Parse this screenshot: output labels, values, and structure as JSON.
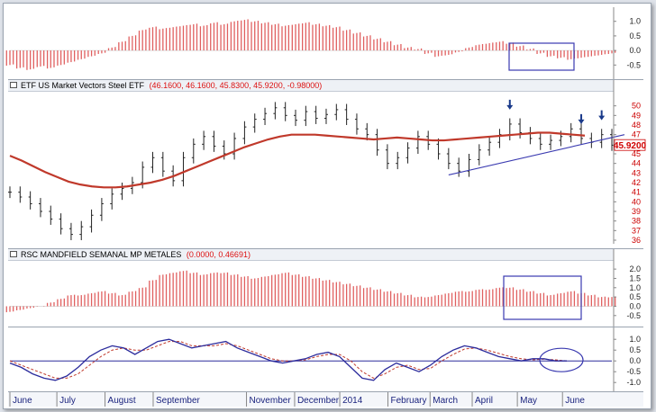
{
  "panels": {
    "etf": {
      "name": "ETF US Market Vectors Steel ETF",
      "values": "(46.1600, 46.1600, 45.8300, 45.9200, -0.98000)",
      "last_price": "45.9200"
    },
    "rsc": {
      "name": "RSC MANDFIELD SEMANAL MP METALES",
      "values": "(0.0000, 0.46691)"
    }
  },
  "colors": {
    "bar_positive": "#e06060",
    "bar_negative": "#e06060",
    "sma": "#c0392b",
    "price": "#222222",
    "trendline": "#3a3ab0",
    "box": "#3a3ab0",
    "osc": "#2b2b9c",
    "osc_signal": "#c0392b",
    "arrow": "#1a3a8a",
    "price_axis": "#d00000"
  },
  "x_axis": {
    "months": [
      "June",
      "July",
      "August",
      "September",
      "November",
      "December",
      "2014",
      "February",
      "March",
      "April",
      "May",
      "June"
    ]
  },
  "chart_data": [
    {
      "type": "bar",
      "panel": "top-histogram",
      "ylim": [
        -0.8,
        1.3
      ],
      "y_ticks": [
        "1.0",
        "0.5",
        "0.0",
        "-0.5"
      ],
      "grid": false,
      "series": [
        {
          "values": [
            -0.5,
            -0.6,
            -0.65,
            -0.55,
            -0.6,
            -0.5,
            -0.4,
            -0.3,
            -0.2,
            -0.1,
            0.1,
            0.3,
            0.5,
            0.7,
            0.8,
            0.75,
            0.8,
            0.85,
            0.9,
            0.85,
            0.95,
            0.9,
            1.0,
            1.05,
            1.0,
            0.95,
            0.9,
            0.85,
            0.9,
            0.95,
            0.9,
            0.85,
            0.8,
            0.7,
            0.6,
            0.5,
            0.4,
            0.3,
            0.2,
            0.1,
            0.05,
            -0.1,
            -0.2,
            -0.15,
            -0.05,
            0.1,
            0.2,
            0.25,
            0.3,
            0.25,
            0.15,
            0.05,
            -0.1,
            -0.2,
            -0.25,
            -0.3,
            -0.25,
            -0.2,
            -0.15,
            -0.1
          ]
        }
      ]
    },
    {
      "type": "line",
      "panel": "price",
      "ylim": [
        36,
        51
      ],
      "y_ticks": [
        "50",
        "49",
        "48",
        "47",
        "46",
        "45",
        "44",
        "43",
        "42",
        "41",
        "40",
        "39",
        "38",
        "37",
        "36"
      ],
      "series": [
        {
          "name": "ETF US Market Vectors Steel ETF",
          "values": [
            41.0,
            40.5,
            39.8,
            39.0,
            38.2,
            37.2,
            36.6,
            37.4,
            38.6,
            39.8,
            40.8,
            41.4,
            42.0,
            43.6,
            44.6,
            43.2,
            42.2,
            44.6,
            46.0,
            46.8,
            45.8,
            45.0,
            46.6,
            47.8,
            48.6,
            49.2,
            49.8,
            49.0,
            48.5,
            49.4,
            48.7,
            49.1,
            49.6,
            48.6,
            47.6,
            47.0,
            45.4,
            44.0,
            44.6,
            45.6,
            46.8,
            46.0,
            45.0,
            44.0,
            43.2,
            44.4,
            45.4,
            46.2,
            47.0,
            48.1,
            47.2,
            46.6,
            46.0,
            46.4,
            46.8,
            47.6,
            46.6,
            46.2,
            47.0,
            45.9
          ]
        },
        {
          "values": [
            44.8,
            44.3,
            43.7,
            43.1,
            42.6,
            42.1,
            41.8,
            41.6,
            41.5,
            41.5,
            41.6,
            41.8,
            42.0,
            42.3,
            42.7,
            43.2,
            43.7,
            44.2,
            44.7,
            45.2,
            45.7,
            46.1,
            46.5,
            46.8,
            47.0,
            47.0,
            47.0,
            46.9,
            46.8,
            46.7,
            46.6,
            46.5,
            46.6,
            46.7,
            46.6,
            46.5,
            46.4,
            46.4,
            46.5,
            46.6,
            46.7,
            46.8,
            46.9,
            47.0,
            47.1,
            47.2,
            47.2,
            47.1,
            47.0,
            46.9
          ]
        }
      ],
      "annotations": {
        "arrows_at_index": [
          49,
          56,
          58
        ]
      }
    },
    {
      "type": "bar",
      "panel": "rsc-histogram",
      "ylim": [
        -0.8,
        2.2
      ],
      "y_ticks": [
        "2.0",
        "1.5",
        "1.0",
        "0.5",
        "0.0",
        "-0.5"
      ],
      "grid": false,
      "series": [
        {
          "values": [
            -0.3,
            -0.2,
            -0.1,
            0.0,
            0.2,
            0.4,
            0.6,
            0.6,
            0.7,
            0.8,
            0.7,
            0.6,
            0.8,
            1.0,
            1.4,
            1.7,
            1.8,
            1.9,
            1.8,
            1.7,
            1.8,
            1.8,
            1.7,
            1.6,
            1.5,
            1.6,
            1.7,
            1.8,
            1.7,
            1.6,
            1.5,
            1.4,
            1.3,
            1.2,
            1.1,
            1.0,
            0.9,
            0.8,
            0.7,
            0.6,
            0.5,
            0.5,
            0.6,
            0.7,
            0.8,
            0.8,
            0.9,
            0.9,
            1.0,
            1.0,
            0.9,
            0.8,
            0.7,
            0.6,
            0.7,
            0.8,
            0.7,
            0.6,
            0.5,
            0.5
          ]
        }
      ]
    },
    {
      "type": "line",
      "panel": "oscillator",
      "ylim": [
        -1.2,
        1.3
      ],
      "y_ticks": [
        "1.0",
        "0.5",
        "0.0",
        "-0.5",
        "-1.0"
      ],
      "series": [
        {
          "values": [
            -0.1,
            -0.3,
            -0.6,
            -0.8,
            -0.9,
            -0.7,
            -0.3,
            0.2,
            0.5,
            0.7,
            0.6,
            0.3,
            0.6,
            0.9,
            1.0,
            0.8,
            0.6,
            0.7,
            0.8,
            0.9,
            0.6,
            0.4,
            0.2,
            0.0,
            -0.1,
            0.0,
            0.1,
            0.3,
            0.4,
            0.2,
            -0.3,
            -0.8,
            -0.9,
            -0.4,
            -0.1,
            -0.3,
            -0.5,
            -0.2,
            0.2,
            0.5,
            0.7,
            0.6,
            0.4,
            0.2,
            0.1,
            0.0,
            0.1,
            0.1,
            0.0,
            0.0
          ]
        },
        {
          "values": [
            0.0,
            -0.2,
            -0.4,
            -0.6,
            -0.8,
            -0.8,
            -0.6,
            -0.2,
            0.2,
            0.5,
            0.6,
            0.5,
            0.5,
            0.7,
            0.9,
            0.9,
            0.7,
            0.7,
            0.7,
            0.8,
            0.7,
            0.5,
            0.3,
            0.1,
            0.0,
            0.0,
            0.05,
            0.2,
            0.3,
            0.3,
            0.0,
            -0.5,
            -0.8,
            -0.6,
            -0.3,
            -0.2,
            -0.4,
            -0.35,
            0.0,
            0.3,
            0.55,
            0.6,
            0.5,
            0.35,
            0.2,
            0.1,
            0.05,
            0.08,
            0.05,
            0.0
          ]
        }
      ]
    }
  ]
}
